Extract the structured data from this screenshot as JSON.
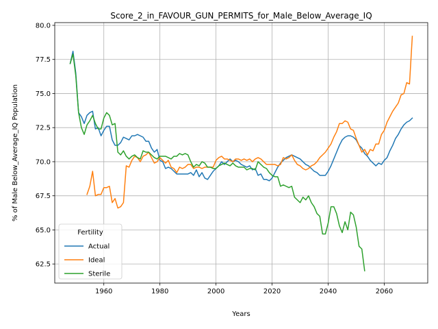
{
  "chart_data": {
    "type": "line",
    "title": "Score_2_in_FAVOUR_GUN_PERMITS_for_Male_Below_Average_IQ",
    "xlabel": "Years",
    "ylabel": "% of Male Below_Average_IQ Population",
    "xlim": [
      1942.5,
      2075.5
    ],
    "ylim": [
      61.1,
      80.2
    ],
    "xticks": [
      1960,
      1980,
      2000,
      2020,
      2040,
      2060
    ],
    "yticks": [
      62.5,
      65.0,
      67.5,
      70.0,
      72.5,
      75.0,
      77.5,
      80.0
    ],
    "ytick_labels": [
      "62.5",
      "65.0",
      "67.5",
      "70.0",
      "72.5",
      "75.0",
      "77.5",
      "80.0"
    ],
    "grid": true,
    "legend": {
      "title": "Fertility",
      "placement": "lower-left"
    },
    "series": [
      {
        "name": "Actual",
        "color": "#1f77b4",
        "x": [
          1948,
          1949,
          1950,
          1951,
          1952,
          1953,
          1954,
          1955,
          1956,
          1957,
          1958,
          1959,
          1960,
          1961,
          1962,
          1963,
          1964,
          1965,
          1966,
          1967,
          1968,
          1969,
          1970,
          1971,
          1972,
          1973,
          1974,
          1975,
          1976,
          1977,
          1978,
          1979,
          1980,
          1981,
          1982,
          1983,
          1984,
          1985,
          1986,
          1987,
          1988,
          1989,
          1990,
          1991,
          1992,
          1993,
          1994,
          1995,
          1996,
          1997,
          1998,
          1999,
          2000,
          2001,
          2002,
          2003,
          2004,
          2005,
          2006,
          2007,
          2008,
          2009,
          2010,
          2011,
          2012,
          2013,
          2014,
          2015,
          2016,
          2017,
          2018,
          2019,
          2020,
          2021,
          2022,
          2023,
          2024,
          2025,
          2026,
          2027,
          2028,
          2029,
          2030,
          2031,
          2032,
          2033,
          2034,
          2035,
          2036,
          2037,
          2038,
          2039,
          2040,
          2041,
          2042,
          2043,
          2044,
          2045,
          2046,
          2047,
          2048,
          2049,
          2050,
          2051,
          2052,
          2053,
          2054,
          2055,
          2056,
          2057,
          2058,
          2059,
          2060,
          2061,
          2062,
          2063,
          2064,
          2065,
          2066,
          2067,
          2068,
          2069,
          2070
        ],
        "y": [
          77.2,
          78.1,
          76.5,
          73.6,
          73.3,
          72.8,
          73.4,
          73.6,
          73.7,
          72.4,
          72.5,
          71.9,
          72.3,
          72.6,
          72.6,
          71.6,
          71.2,
          71.2,
          71.4,
          71.8,
          71.7,
          71.6,
          71.9,
          71.9,
          72.0,
          71.9,
          71.8,
          71.5,
          71.5,
          71.0,
          70.7,
          70.9,
          70.1,
          70.0,
          69.5,
          69.6,
          69.5,
          69.3,
          69.1,
          69.1,
          69.1,
          69.1,
          69.1,
          69.2,
          69.0,
          69.4,
          68.9,
          69.2,
          68.8,
          68.7,
          69.0,
          69.3,
          69.5,
          69.7,
          70.0,
          69.8,
          70.0,
          70.2,
          70.0,
          70.1,
          70.0,
          69.8,
          69.7,
          69.6,
          69.7,
          69.4,
          69.5,
          69.0,
          69.1,
          68.7,
          68.7,
          68.6,
          68.8,
          69.2,
          69.6,
          69.9,
          70.1,
          70.3,
          70.4,
          70.5,
          70.4,
          70.3,
          70.2,
          70.0,
          69.8,
          69.7,
          69.5,
          69.3,
          69.2,
          69.0,
          69.0,
          69.0,
          69.3,
          69.7,
          70.2,
          70.7,
          71.2,
          71.6,
          71.8,
          71.9,
          71.9,
          71.8,
          71.6,
          71.2,
          71.0,
          70.6,
          70.4,
          70.1,
          69.9,
          69.7,
          69.9,
          69.8,
          70.1,
          70.3,
          70.8,
          71.2,
          71.7,
          72.0,
          72.4,
          72.7,
          72.9,
          73.0,
          73.2
        ]
      },
      {
        "name": "Ideal",
        "color": "#ff7f0e",
        "x": [
          1954,
          1955,
          1956,
          1957,
          1958,
          1959,
          1960,
          1961,
          1962,
          1963,
          1964,
          1965,
          1966,
          1967,
          1968,
          1969,
          1970,
          1971,
          1972,
          1973,
          1974,
          1975,
          1976,
          1977,
          1978,
          1979,
          1980,
          1981,
          1982,
          1983,
          1984,
          1985,
          1986,
          1987,
          1988,
          1989,
          1990,
          1991,
          1992,
          1993,
          1994,
          1995,
          1996,
          1997,
          1998,
          1999,
          2000,
          2001,
          2002,
          2003,
          2004,
          2005,
          2006,
          2007,
          2008,
          2009,
          2010,
          2011,
          2012,
          2013,
          2014,
          2015,
          2016,
          2017,
          2018,
          2019,
          2020,
          2021,
          2022,
          2023,
          2024,
          2025,
          2026,
          2027,
          2028,
          2029,
          2030,
          2031,
          2032,
          2033,
          2034,
          2035,
          2036,
          2037,
          2038,
          2039,
          2040,
          2041,
          2042,
          2043,
          2044,
          2045,
          2046,
          2047,
          2048,
          2049,
          2050,
          2051,
          2052,
          2053,
          2054,
          2055,
          2056,
          2057,
          2058,
          2059,
          2060,
          2061,
          2062,
          2063,
          2064,
          2065,
          2066,
          2067,
          2068,
          2069,
          2070
        ],
        "y": [
          67.6,
          68.2,
          69.3,
          67.5,
          67.6,
          67.6,
          68.1,
          68.1,
          68.2,
          67.0,
          67.3,
          66.6,
          66.7,
          67.0,
          69.7,
          69.6,
          70.1,
          70.4,
          70.3,
          70.0,
          70.4,
          70.5,
          70.7,
          70.3,
          69.9,
          70.0,
          70.3,
          70.1,
          69.9,
          70.1,
          69.6,
          69.5,
          69.2,
          69.6,
          69.5,
          69.6,
          69.8,
          69.8,
          69.5,
          69.6,
          69.6,
          69.5,
          69.6,
          69.6,
          69.6,
          69.6,
          70.1,
          70.3,
          70.4,
          70.2,
          70.2,
          70.1,
          70.0,
          70.2,
          70.2,
          70.1,
          70.2,
          70.1,
          70.2,
          70.0,
          70.2,
          70.3,
          70.2,
          70.0,
          69.8,
          69.8,
          69.8,
          69.8,
          69.7,
          69.8,
          70.3,
          70.2,
          70.3,
          70.5,
          70.1,
          69.8,
          69.7,
          69.5,
          69.4,
          69.5,
          69.7,
          69.8,
          70.0,
          70.3,
          70.5,
          70.7,
          71.0,
          71.3,
          71.8,
          72.2,
          72.8,
          72.8,
          73.0,
          72.9,
          72.4,
          72.3,
          71.7,
          71.2,
          70.7,
          70.9,
          70.5,
          70.9,
          70.8,
          71.3,
          71.3,
          72.0,
          72.3,
          72.9,
          73.3,
          73.7,
          74.0,
          74.3,
          74.9,
          75.0,
          75.8,
          75.7,
          79.2
        ]
      },
      {
        "name": "Sterile",
        "color": "#2ca02c",
        "x": [
          1948,
          1949,
          1950,
          1951,
          1952,
          1953,
          1954,
          1955,
          1956,
          1957,
          1958,
          1959,
          1960,
          1961,
          1962,
          1963,
          1964,
          1965,
          1966,
          1967,
          1968,
          1969,
          1970,
          1971,
          1972,
          1973,
          1974,
          1975,
          1976,
          1977,
          1978,
          1979,
          1980,
          1981,
          1982,
          1983,
          1984,
          1985,
          1986,
          1987,
          1988,
          1989,
          1990,
          1991,
          1992,
          1993,
          1994,
          1995,
          1996,
          1997,
          1998,
          1999,
          2000,
          2001,
          2002,
          2003,
          2004,
          2005,
          2006,
          2007,
          2008,
          2009,
          2010,
          2011,
          2012,
          2013,
          2014,
          2015,
          2016,
          2017,
          2018,
          2019,
          2020,
          2021,
          2022,
          2023,
          2024,
          2025,
          2026,
          2027,
          2028,
          2029,
          2030,
          2031,
          2032,
          2033,
          2034,
          2035,
          2036,
          2037,
          2038,
          2039,
          2040,
          2041,
          2042,
          2043,
          2044,
          2045,
          2046,
          2047,
          2048,
          2049,
          2050,
          2051,
          2052,
          2053
        ],
        "y": [
          77.2,
          77.9,
          76.3,
          73.6,
          72.5,
          72.0,
          72.7,
          73.0,
          73.4,
          72.8,
          72.4,
          72.4,
          73.2,
          73.6,
          73.4,
          72.7,
          72.8,
          70.7,
          70.5,
          70.8,
          70.4,
          70.2,
          70.4,
          70.5,
          70.3,
          70.2,
          70.8,
          70.7,
          70.7,
          70.5,
          70.3,
          70.2,
          70.4,
          70.4,
          70.4,
          70.3,
          70.2,
          70.4,
          70.4,
          70.6,
          70.5,
          70.6,
          70.5,
          70.0,
          69.6,
          69.8,
          69.7,
          70.0,
          69.9,
          69.6,
          69.6,
          69.5,
          69.5,
          69.7,
          69.8,
          69.9,
          69.8,
          69.7,
          69.9,
          69.7,
          69.6,
          69.6,
          69.6,
          69.4,
          69.5,
          69.5,
          69.4,
          70.0,
          69.8,
          69.6,
          69.5,
          69.2,
          69.0,
          68.9,
          68.9,
          68.2,
          68.3,
          68.2,
          68.1,
          68.2,
          67.4,
          67.2,
          67.0,
          67.4,
          67.2,
          67.5,
          67.0,
          66.7,
          66.2,
          66.0,
          64.7,
          64.7,
          65.5,
          66.7,
          66.7,
          66.2,
          65.3,
          64.8,
          65.6,
          65.0,
          66.3,
          66.1,
          65.2,
          63.8,
          63.6,
          62.0
        ]
      }
    ]
  }
}
